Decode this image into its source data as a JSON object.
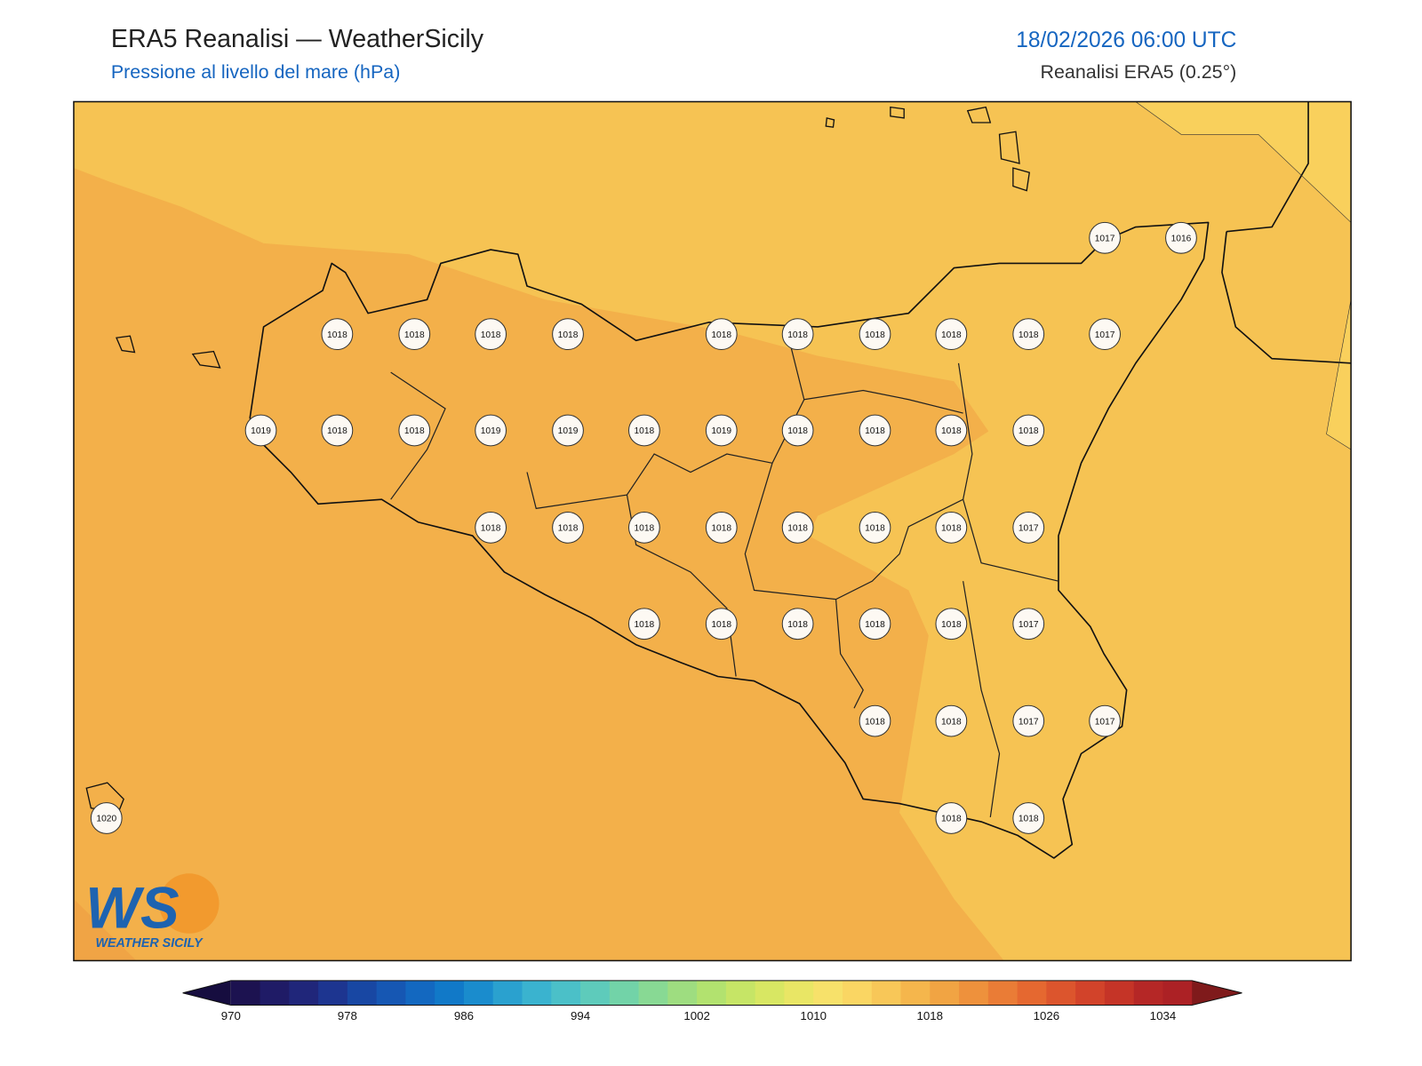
{
  "header": {
    "title": "ERA5 Reanalisi — WeatherSicily",
    "subtitle": "Pressione al livello del mare (hPa)",
    "datetime": "18/02/2026 06:00 UTC",
    "source": "Reanalisi ERA5 (0.25°)"
  },
  "stations": [
    1017,
    1016,
    1018,
    1018,
    1018,
    1018,
    1018,
    1018,
    1018,
    1018,
    1018,
    1017,
    1019,
    1018,
    1018,
    1019,
    1019,
    1018,
    1019,
    1018,
    1018,
    1018,
    1018,
    1018,
    1018,
    1018,
    1018,
    1018,
    1018,
    1018,
    1017,
    1018,
    1018,
    1018,
    1018,
    1018,
    1017,
    1018,
    1018,
    1017,
    1017,
    1020,
    1018,
    1018
  ],
  "colorbar": {
    "lim": [
      970,
      1036
    ],
    "ticks": [
      970,
      978,
      986,
      994,
      1002,
      1010,
      1018,
      1026,
      1034
    ],
    "under": "#160d3f",
    "over": "#7f1a1b",
    "colors": [
      "#1c1250",
      "#1f1b66",
      "#20267a",
      "#1d3590",
      "#1847a3",
      "#1657b3",
      "#1368c0",
      "#1179c8",
      "#1a8ccd",
      "#2aa1cf",
      "#3ab3cf",
      "#4bc0c8",
      "#5ecbbb",
      "#72d3a8",
      "#88d994",
      "#9edd80",
      "#b2e26f",
      "#c6e566",
      "#d8e763",
      "#e9e665",
      "#f7e16a",
      "#fad663",
      "#f8c758",
      "#f5b64c",
      "#f1a443",
      "#ee913c",
      "#ea7c36",
      "#e56830",
      "#dc552d",
      "#d2432a",
      "#c53427",
      "#b52726",
      "#ac2125"
    ]
  },
  "logo": {
    "mark": "WS",
    "text": "WEATHER SICILY"
  }
}
